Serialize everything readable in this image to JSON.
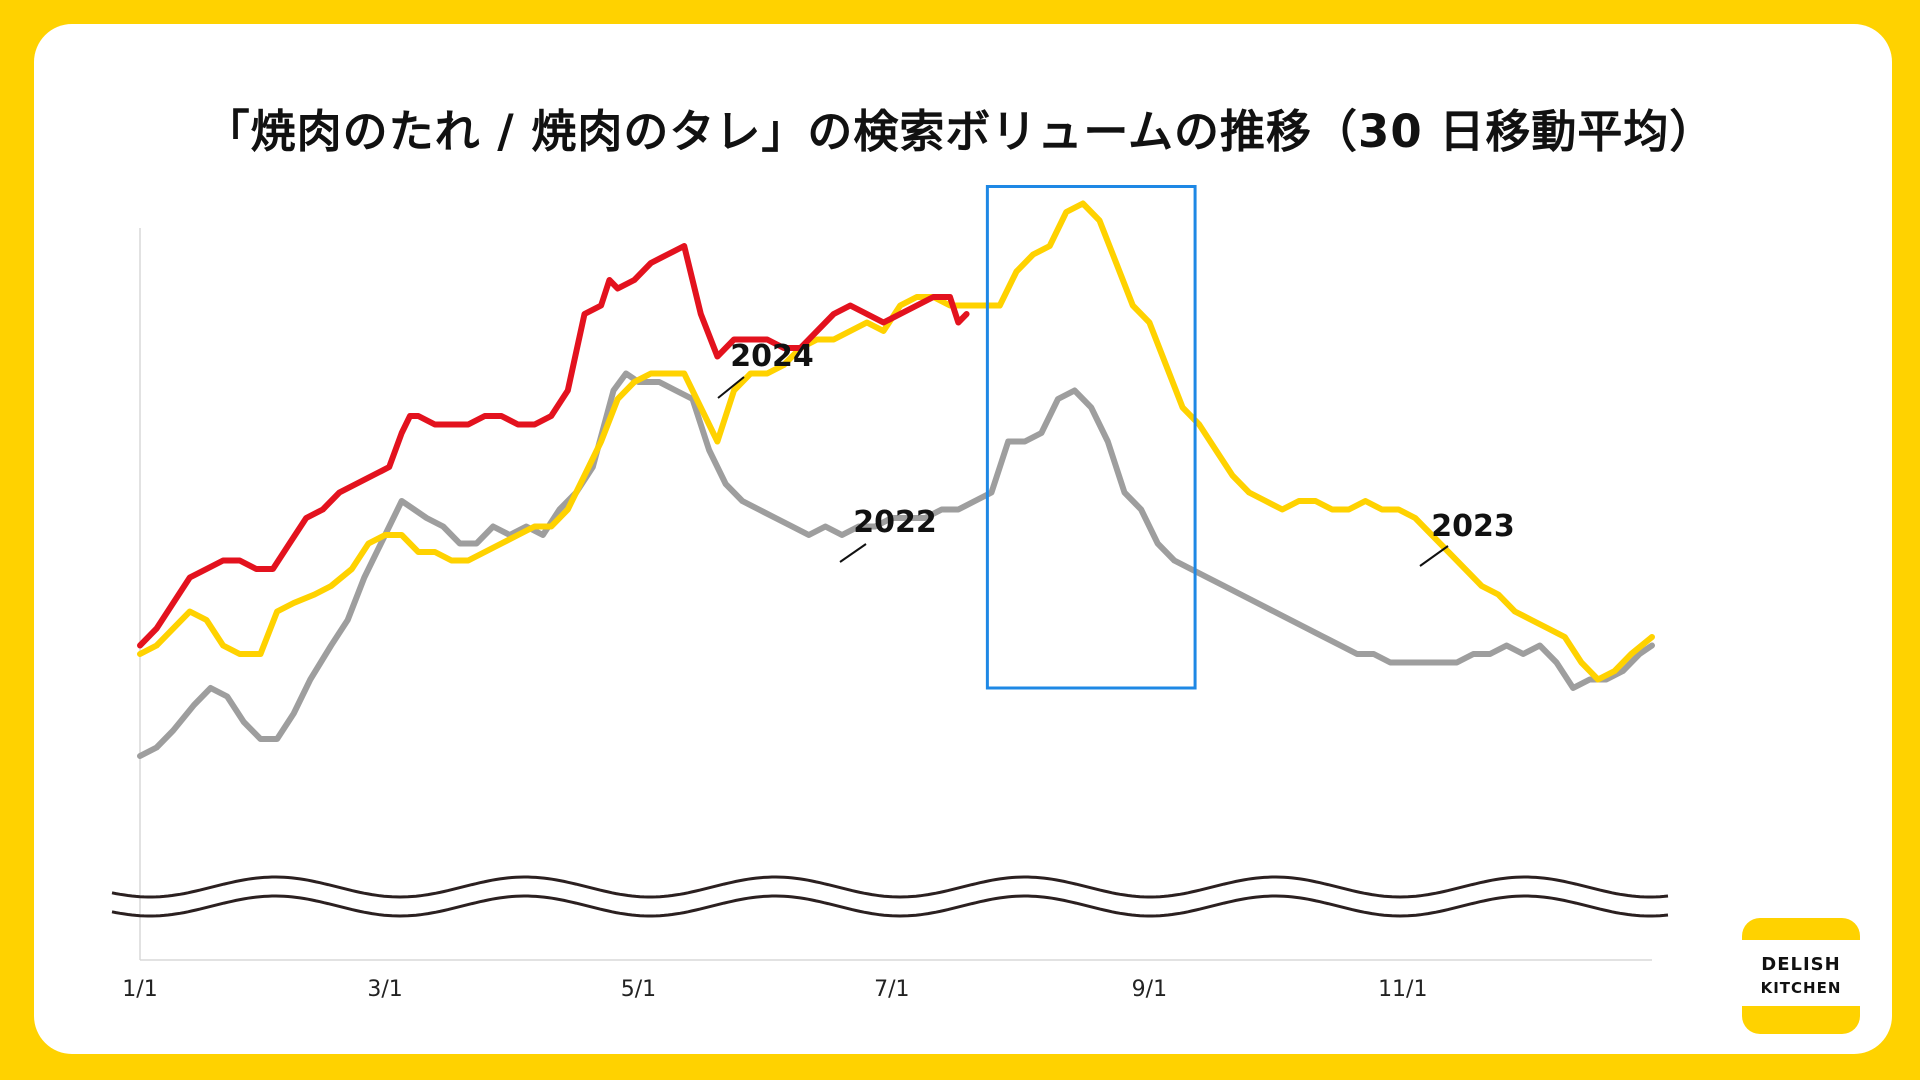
{
  "title": "「焼肉のたれ / 焼肉のタレ」の検索ボリュームの推移（30 日移動平均）",
  "logo": {
    "line1": "DELISH",
    "line2": "KITCHEN"
  },
  "colors": {
    "2022": "#9e9e9e",
    "2023": "#FFD200",
    "2024": "#E3121E",
    "highlight": "#1E88E5",
    "background": "#FFD200"
  },
  "chart_data": {
    "type": "line",
    "xlabel": "",
    "ylabel": "",
    "ylim": [
      0,
      120
    ],
    "x_ticks": [
      {
        "day": 1,
        "label": "1/1"
      },
      {
        "day": 60,
        "label": "3/1"
      },
      {
        "day": 121,
        "label": "5/1"
      },
      {
        "day": 182,
        "label": "7/1"
      },
      {
        "day": 244,
        "label": "9/1"
      },
      {
        "day": 305,
        "label": "11/1"
      }
    ],
    "y_axis_break": true,
    "highlight_range": {
      "from_day": 205,
      "to_day": 255,
      "ymin": 47,
      "ymax": 106
    },
    "series": [
      {
        "name": "2022",
        "label": "2022",
        "x": [
          1,
          5,
          9,
          14,
          18,
          22,
          26,
          30,
          34,
          38,
          42,
          47,
          51,
          55,
          60,
          64,
          67,
          70,
          74,
          78,
          82,
          86,
          90,
          94,
          98,
          102,
          106,
          110,
          115,
          118,
          121,
          126,
          130,
          134,
          138,
          142,
          146,
          150,
          154,
          158,
          162,
          166,
          170,
          174,
          178,
          182,
          186,
          190,
          194,
          198,
          202,
          206,
          210,
          214,
          218,
          222,
          226,
          230,
          234,
          238,
          242,
          246,
          250,
          254,
          258,
          262,
          266,
          270,
          274,
          278,
          282,
          286,
          290,
          294,
          298,
          302,
          306,
          310,
          314,
          318,
          322,
          326,
          330,
          334,
          338,
          342,
          346,
          350,
          354,
          358,
          362,
          365
        ],
        "values": [
          39,
          40,
          42,
          45,
          47,
          46,
          43,
          41,
          41,
          44,
          48,
          52,
          55,
          60,
          65,
          69,
          68,
          67,
          66,
          64,
          64,
          66,
          65,
          66,
          65,
          68,
          70,
          73,
          82,
          84,
          83,
          83,
          82,
          81,
          75,
          71,
          69,
          68,
          67,
          66,
          65,
          66,
          65,
          66,
          66,
          67,
          67,
          67,
          68,
          68,
          69,
          70,
          76,
          76,
          77,
          81,
          82,
          80,
          76,
          70,
          68,
          64,
          62,
          61,
          60,
          59,
          58,
          57,
          56,
          55,
          54,
          53,
          52,
          51,
          51,
          50,
          50,
          50,
          50,
          50,
          51,
          51,
          52,
          51,
          52,
          50,
          47,
          48,
          48,
          49,
          51,
          52
        ]
      },
      {
        "name": "2023",
        "label": "2023",
        "x": [
          1,
          5,
          9,
          13,
          17,
          21,
          25,
          30,
          34,
          38,
          43,
          47,
          52,
          56,
          60,
          64,
          68,
          72,
          76,
          80,
          84,
          88,
          92,
          96,
          100,
          104,
          108,
          112,
          116,
          120,
          124,
          128,
          132,
          136,
          140,
          144,
          148,
          152,
          156,
          160,
          164,
          168,
          172,
          176,
          180,
          184,
          188,
          192,
          196,
          200,
          204,
          208,
          212,
          216,
          220,
          224,
          228,
          232,
          236,
          240,
          244,
          248,
          252,
          256,
          260,
          264,
          268,
          272,
          276,
          280,
          284,
          288,
          292,
          296,
          300,
          304,
          308,
          312,
          316,
          320,
          324,
          328,
          332,
          336,
          340,
          344,
          348,
          352,
          356,
          360,
          365
        ],
        "values": [
          51,
          52,
          54,
          56,
          55,
          52,
          51,
          51,
          56,
          57,
          58,
          59,
          61,
          64,
          65,
          65,
          63,
          63,
          62,
          62,
          63,
          64,
          65,
          66,
          66,
          68,
          72,
          76,
          81,
          83,
          84,
          84,
          84,
          80,
          76,
          82,
          84,
          84,
          85,
          87,
          88,
          88,
          89,
          90,
          89,
          92,
          93,
          93,
          92,
          92,
          92,
          92,
          96,
          98,
          99,
          103,
          104,
          102,
          97,
          92,
          90,
          85,
          80,
          78,
          75,
          72,
          70,
          69,
          68,
          69,
          69,
          68,
          68,
          69,
          68,
          68,
          67,
          65,
          63,
          61,
          59,
          58,
          56,
          55,
          54,
          53,
          50,
          48,
          49,
          51,
          53
        ]
      },
      {
        "name": "2024",
        "label": "2024",
        "x": [
          1,
          5,
          9,
          13,
          17,
          21,
          25,
          29,
          33,
          37,
          41,
          45,
          49,
          53,
          57,
          61,
          64,
          66,
          68,
          72,
          76,
          80,
          84,
          88,
          92,
          96,
          100,
          104,
          108,
          112,
          114,
          116,
          120,
          124,
          128,
          132,
          136,
          140,
          144,
          148,
          152,
          156,
          160,
          164,
          168,
          172,
          176,
          180,
          184,
          188,
          192,
          196,
          198,
          200
        ],
        "values": [
          52,
          54,
          57,
          60,
          61,
          62,
          62,
          61,
          61,
          64,
          67,
          68,
          70,
          71,
          72,
          73,
          77,
          79,
          79,
          78,
          78,
          78,
          79,
          79,
          78,
          78,
          79,
          82,
          91,
          92,
          95,
          94,
          95,
          97,
          98,
          99,
          91,
          86,
          88,
          88,
          88,
          87,
          87,
          89,
          91,
          92,
          91,
          90,
          91,
          92,
          93,
          93,
          90,
          91
        ]
      }
    ],
    "series_labels": [
      {
        "series": "2024",
        "text": "2024"
      },
      {
        "series": "2022",
        "text": "2022"
      },
      {
        "series": "2023",
        "text": "2023"
      }
    ]
  }
}
